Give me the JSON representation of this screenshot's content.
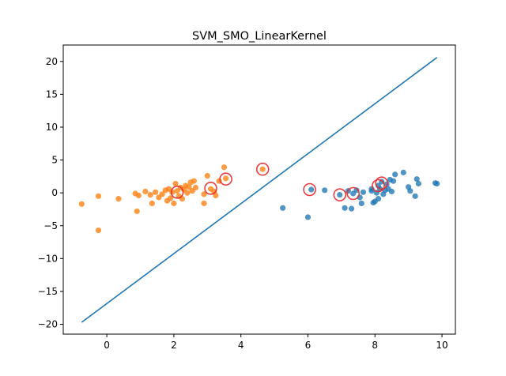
{
  "chart_data": {
    "type": "scatter",
    "title": "SVM_SMO_LinearKernel",
    "xlabel": "",
    "ylabel": "",
    "xlim": [
      -1.3,
      10.4
    ],
    "ylim": [
      -21.5,
      22.5
    ],
    "xticks": [
      0,
      2,
      4,
      6,
      8,
      10
    ],
    "yticks": [
      -20,
      -15,
      -10,
      -5,
      0,
      5,
      10,
      15,
      20
    ],
    "grid": false,
    "legend": "none",
    "colors": {
      "class_a": "#ff7f0e",
      "class_b": "#1f77b4",
      "line": "#1f77b4",
      "support_vector": "#e8282b"
    },
    "series": [
      {
        "values": [
          [
            -0.75,
            -1.7
          ],
          [
            -0.25,
            -0.5
          ],
          [
            -0.25,
            -5.7
          ],
          [
            0.35,
            -0.9
          ],
          [
            0.85,
            -0.1
          ],
          [
            0.9,
            -2.8
          ],
          [
            0.95,
            -0.4
          ],
          [
            1.15,
            0.2
          ],
          [
            1.3,
            -0.3
          ],
          [
            1.35,
            -1.6
          ],
          [
            1.45,
            0.1
          ],
          [
            1.55,
            -0.7
          ],
          [
            1.65,
            -0.2
          ],
          [
            1.75,
            0.4
          ],
          [
            1.8,
            -1.2
          ],
          [
            1.85,
            0.6
          ],
          [
            1.9,
            -0.8
          ],
          [
            1.95,
            0.1
          ],
          [
            2.0,
            -1.6
          ],
          [
            2.05,
            1.4
          ],
          [
            2.1,
            0.3
          ],
          [
            2.15,
            -0.5
          ],
          [
            2.2,
            0.8
          ],
          [
            2.25,
            -0.9
          ],
          [
            2.3,
            0.5
          ],
          [
            2.35,
            1.1
          ],
          [
            2.4,
            0.0
          ],
          [
            2.45,
            0.9
          ],
          [
            2.5,
            1.6
          ],
          [
            2.55,
            0.3
          ],
          [
            2.6,
            1.8
          ],
          [
            2.65,
            0.8
          ],
          [
            2.9,
            -0.2
          ],
          [
            2.9,
            -1.6
          ],
          [
            3.0,
            2.6
          ],
          [
            3.1,
            0.6
          ],
          [
            3.2,
            0.2
          ],
          [
            3.25,
            -0.4
          ],
          [
            3.35,
            1.8
          ],
          [
            3.5,
            3.9
          ],
          [
            3.55,
            2.2
          ],
          [
            4.65,
            3.6
          ]
        ]
      },
      {
        "values": [
          [
            5.25,
            -2.3
          ],
          [
            6.0,
            -3.7
          ],
          [
            6.1,
            0.5
          ],
          [
            6.5,
            0.4
          ],
          [
            6.95,
            -0.3
          ],
          [
            7.1,
            -2.3
          ],
          [
            7.2,
            0.3
          ],
          [
            7.3,
            -2.4
          ],
          [
            7.35,
            -0.1
          ],
          [
            7.45,
            0.4
          ],
          [
            7.55,
            -0.7
          ],
          [
            7.6,
            -1.6
          ],
          [
            7.65,
            0.1
          ],
          [
            7.9,
            0.3
          ],
          [
            7.9,
            0.6
          ],
          [
            7.95,
            -1.5
          ],
          [
            8.0,
            -1.3
          ],
          [
            8.05,
            0.0
          ],
          [
            8.1,
            -0.9
          ],
          [
            8.1,
            1.1
          ],
          [
            8.15,
            0.6
          ],
          [
            8.2,
            1.7
          ],
          [
            8.25,
            -0.2
          ],
          [
            8.3,
            0.4
          ],
          [
            8.35,
            1.3
          ],
          [
            8.4,
            0.6
          ],
          [
            8.45,
            2.0
          ],
          [
            8.5,
            0.2
          ],
          [
            8.55,
            1.8
          ],
          [
            8.6,
            2.8
          ],
          [
            8.85,
            3.1
          ],
          [
            9.0,
            0.9
          ],
          [
            9.05,
            0.3
          ],
          [
            9.2,
            -0.5
          ],
          [
            9.25,
            2.1
          ],
          [
            9.3,
            1.4
          ],
          [
            9.8,
            1.5
          ],
          [
            9.85,
            1.4
          ]
        ]
      }
    ],
    "support_vectors": [
      [
        2.1,
        0.1
      ],
      [
        3.1,
        0.7
      ],
      [
        3.55,
        2.1
      ],
      [
        4.65,
        3.6
      ],
      [
        6.05,
        0.5
      ],
      [
        6.95,
        -0.3
      ],
      [
        7.35,
        -0.1
      ],
      [
        8.1,
        1.1
      ],
      [
        8.2,
        1.5
      ]
    ],
    "decision_boundary": {
      "x": [
        -0.75,
        9.85
      ],
      "y": [
        -19.7,
        20.6
      ]
    }
  }
}
